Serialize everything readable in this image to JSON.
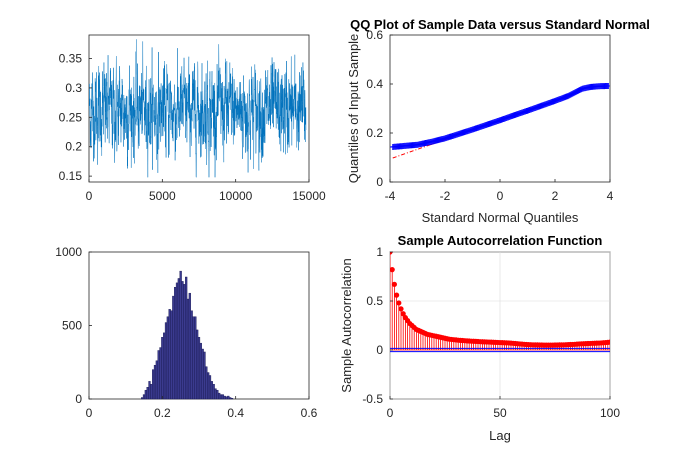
{
  "chart_data": [
    {
      "type": "line",
      "panel": "top-left",
      "title": "",
      "xlabel": "",
      "ylabel": "",
      "xlim": [
        0,
        15000
      ],
      "ylim": [
        0.14,
        0.39
      ],
      "xticks": [
        0,
        5000,
        10000,
        15000
      ],
      "yticks": [
        0.15,
        0.2,
        0.25,
        0.3,
        0.35
      ],
      "n_samples": 14800,
      "mean": 0.262,
      "series": [
        {
          "color": "#0072bd"
        }
      ]
    },
    {
      "type": "scatter",
      "panel": "top-right",
      "title": "QQ Plot of Sample Data versus Standard Normal",
      "xlabel": "Standard Normal Quantiles",
      "ylabel": "Quantiles of Input Sample",
      "xlim": [
        -4,
        4
      ],
      "ylim": [
        0,
        0.6
      ],
      "xticks": [
        -4,
        -2,
        0,
        2,
        4
      ],
      "yticks": [
        0,
        0.2,
        0.4,
        0.6
      ],
      "points": [
        [
          -3.9,
          0.143
        ],
        [
          -3.5,
          0.147
        ],
        [
          -3.0,
          0.152
        ],
        [
          -2.5,
          0.164
        ],
        [
          -2.0,
          0.178
        ],
        [
          -1.5,
          0.196
        ],
        [
          -1.0,
          0.214
        ],
        [
          -0.5,
          0.233
        ],
        [
          0.0,
          0.252
        ],
        [
          0.5,
          0.272
        ],
        [
          1.0,
          0.291
        ],
        [
          1.5,
          0.311
        ],
        [
          2.0,
          0.331
        ],
        [
          2.5,
          0.352
        ],
        [
          2.8,
          0.37
        ],
        [
          3.0,
          0.381
        ],
        [
          3.3,
          0.388
        ],
        [
          3.6,
          0.391
        ],
        [
          3.95,
          0.392
        ]
      ],
      "reference_line": {
        "slope": 0.0395,
        "intercept": 0.252
      },
      "marker_color": "#0000ff",
      "line_color": "#ff0000"
    },
    {
      "type": "bar",
      "panel": "bottom-left",
      "title": "",
      "xlabel": "",
      "ylabel": "",
      "xlim": [
        0,
        0.6
      ],
      "ylim": [
        0,
        1000
      ],
      "xticks": [
        0,
        0.2,
        0.4,
        0.6
      ],
      "yticks": [
        0,
        500,
        1000
      ],
      "bin_centers": [
        0.145,
        0.15,
        0.155,
        0.16,
        0.165,
        0.17,
        0.175,
        0.18,
        0.185,
        0.19,
        0.195,
        0.2,
        0.205,
        0.21,
        0.215,
        0.22,
        0.225,
        0.23,
        0.235,
        0.24,
        0.245,
        0.25,
        0.255,
        0.26,
        0.265,
        0.27,
        0.275,
        0.28,
        0.285,
        0.29,
        0.295,
        0.3,
        0.305,
        0.31,
        0.315,
        0.32,
        0.325,
        0.33,
        0.335,
        0.34,
        0.345,
        0.35,
        0.355,
        0.36,
        0.365,
        0.37,
        0.375,
        0.38,
        0.385,
        0.39
      ],
      "values": [
        10,
        30,
        60,
        80,
        120,
        100,
        200,
        230,
        260,
        330,
        350,
        420,
        450,
        520,
        560,
        610,
        600,
        700,
        760,
        790,
        820,
        870,
        800,
        780,
        830,
        680,
        720,
        600,
        560,
        560,
        470,
        420,
        380,
        340,
        320,
        220,
        180,
        160,
        120,
        100,
        70,
        60,
        40,
        30,
        30,
        20,
        15,
        20,
        10,
        5
      ],
      "bar_color": "#3b3b8f",
      "edge_color": "#161650"
    },
    {
      "type": "line",
      "panel": "bottom-right",
      "title": "Sample Autocorrelation Function",
      "xlabel": "Lag",
      "ylabel": "Sample Autocorrelation",
      "xlim": [
        0,
        100
      ],
      "ylim": [
        -0.5,
        1
      ],
      "xticks": [
        0,
        50,
        100
      ],
      "yticks": [
        -0.5,
        0,
        0.5,
        1
      ],
      "grid": true,
      "lags": [
        0,
        1,
        2,
        3,
        4,
        5,
        6,
        7,
        8,
        9,
        10,
        11,
        12,
        13,
        14,
        15,
        16,
        17,
        18,
        19,
        20,
        21,
        22,
        23,
        24,
        25,
        26,
        27,
        28,
        29,
        30,
        31,
        32,
        33,
        34,
        35,
        36,
        37,
        38,
        39,
        40,
        41,
        42,
        43,
        44,
        45,
        46,
        47,
        48,
        49,
        50,
        51,
        52,
        53,
        54,
        55,
        56,
        57,
        58,
        59,
        60,
        61,
        62,
        63,
        64,
        65,
        66,
        67,
        68,
        69,
        70,
        71,
        72,
        73,
        74,
        75,
        76,
        77,
        78,
        79,
        80,
        81,
        82,
        83,
        84,
        85,
        86,
        87,
        88,
        89,
        90,
        91,
        92,
        93,
        94,
        95,
        96,
        97,
        98,
        99,
        100
      ],
      "acf": [
        1.0,
        0.82,
        0.67,
        0.56,
        0.48,
        0.42,
        0.37,
        0.33,
        0.3,
        0.27,
        0.25,
        0.23,
        0.21,
        0.2,
        0.19,
        0.18,
        0.17,
        0.16,
        0.155,
        0.15,
        0.145,
        0.14,
        0.135,
        0.13,
        0.125,
        0.12,
        0.115,
        0.11,
        0.108,
        0.105,
        0.103,
        0.1,
        0.098,
        0.097,
        0.095,
        0.093,
        0.092,
        0.09,
        0.089,
        0.088,
        0.087,
        0.085,
        0.084,
        0.083,
        0.082,
        0.081,
        0.08,
        0.079,
        0.078,
        0.077,
        0.076,
        0.075,
        0.074,
        0.073,
        0.072,
        0.07,
        0.068,
        0.066,
        0.064,
        0.062,
        0.06,
        0.058,
        0.056,
        0.055,
        0.054,
        0.053,
        0.052,
        0.052,
        0.051,
        0.051,
        0.05,
        0.05,
        0.05,
        0.05,
        0.05,
        0.051,
        0.051,
        0.052,
        0.052,
        0.053,
        0.054,
        0.055,
        0.056,
        0.057,
        0.058,
        0.06,
        0.062,
        0.063,
        0.064,
        0.065,
        0.066,
        0.067,
        0.068,
        0.069,
        0.07,
        0.071,
        0.072,
        0.074,
        0.076,
        0.078,
        0.08
      ],
      "confidence_bound": 0.016,
      "stem_color": "#ff0000",
      "bound_color": "#0000ff"
    }
  ]
}
